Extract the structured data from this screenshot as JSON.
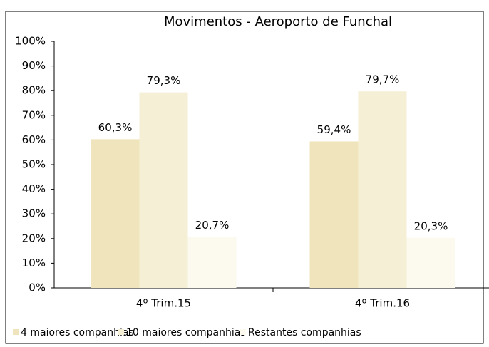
{
  "chart_data": {
    "type": "bar",
    "title": "Movimentos - Aeroporto de Funchal",
    "categories": [
      "4º Trim.15",
      "4º Trim.16"
    ],
    "series": [
      {
        "name": "4 maiores companhias",
        "color": "#efe4bc",
        "values": [
          60.3,
          59.4
        ],
        "value_labels": [
          "60,3%",
          "59,4%"
        ]
      },
      {
        "name": "10 maiores companhias",
        "color": "#f5efd5",
        "values": [
          79.3,
          79.7
        ],
        "value_labels": [
          "79,3%",
          "79,7%"
        ]
      },
      {
        "name": "Restantes companhias",
        "color": "#fcf9ee",
        "values": [
          20.7,
          20.3
        ],
        "value_labels": [
          "20,7%",
          "20,3%"
        ]
      }
    ],
    "ylim": [
      0,
      100
    ],
    "yticks": [
      {
        "value": 0,
        "label": "0%"
      },
      {
        "value": 10,
        "label": "10%"
      },
      {
        "value": 20,
        "label": "20%"
      },
      {
        "value": 30,
        "label": "30%"
      },
      {
        "value": 40,
        "label": "40%"
      },
      {
        "value": 50,
        "label": "50%"
      },
      {
        "value": 60,
        "label": "60%"
      },
      {
        "value": 70,
        "label": "70%"
      },
      {
        "value": 80,
        "label": "80%"
      },
      {
        "value": 90,
        "label": "90%"
      },
      {
        "value": 100,
        "label": "100%"
      }
    ],
    "grid": false,
    "legend": "bottom"
  }
}
